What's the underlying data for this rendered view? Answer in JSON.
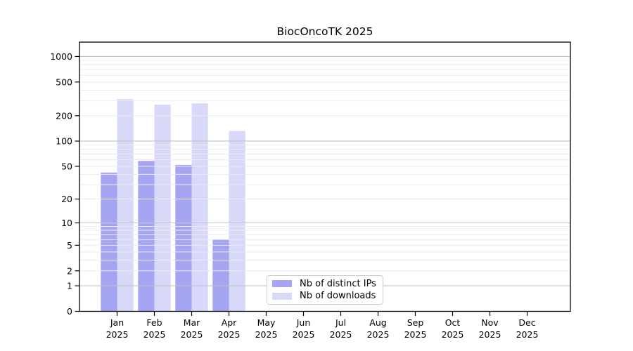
{
  "chart_data": {
    "type": "bar",
    "title": "BiocOncoTK 2025",
    "categories": [
      "Jan",
      "Feb",
      "Mar",
      "Apr",
      "May",
      "Jun",
      "Jul",
      "Aug",
      "Sep",
      "Oct",
      "Nov",
      "Dec"
    ],
    "category_year": "2025",
    "series": [
      {
        "name": "Nb of distinct IPs",
        "color": "#a5a5f3",
        "values": [
          42,
          58,
          52,
          6,
          0,
          0,
          0,
          0,
          0,
          0,
          0,
          0
        ]
      },
      {
        "name": "Nb of downloads",
        "color": "#d8d8f8",
        "values": [
          315,
          270,
          280,
          132,
          0,
          0,
          0,
          0,
          0,
          0,
          0,
          0
        ]
      }
    ],
    "xlabel": "",
    "ylabel": "",
    "y_scale": "log10(value+1)",
    "y_ticks": [
      0,
      1,
      2,
      5,
      10,
      20,
      50,
      100,
      200,
      500,
      1000
    ],
    "ylim": [
      0,
      1500
    ],
    "grid": "horizontal major+minor, drawn over bars",
    "legend_position": "inside bottom-center",
    "colors": {
      "axis": "#000000",
      "major_grid": "#c2c2c2",
      "minor_grid": "#ececec",
      "background": "#ffffff",
      "legend_border": "#cccccc"
    }
  }
}
